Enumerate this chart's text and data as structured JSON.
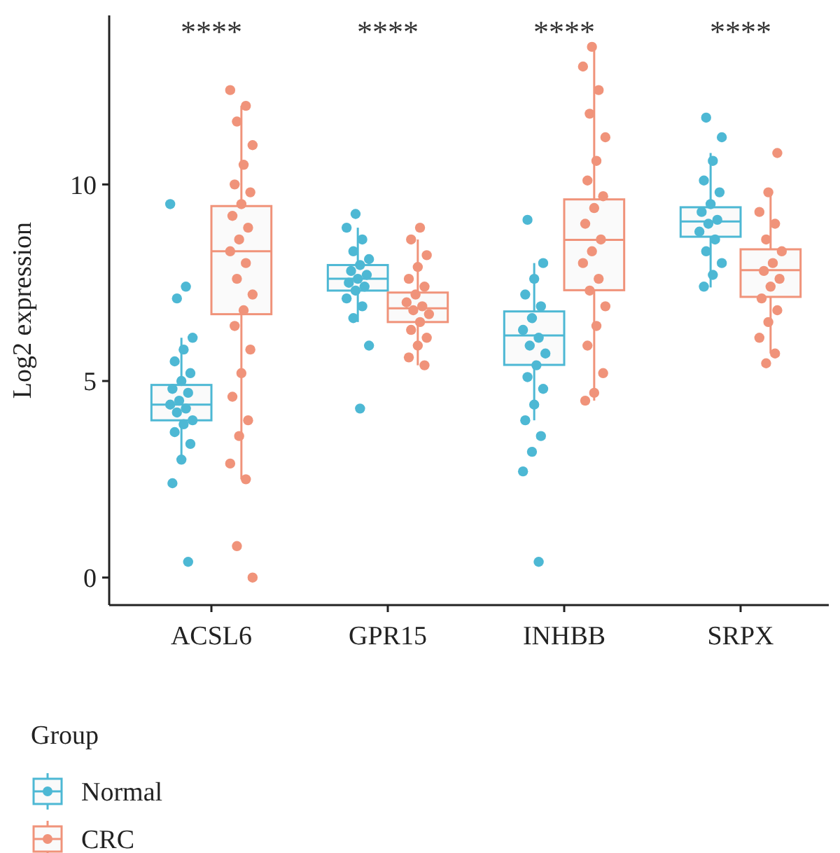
{
  "chart_data": {
    "type": "box",
    "categories": [
      "ACSL6",
      "GPR15",
      "INHBB",
      "SRPX"
    ],
    "ylabel": "Log2 expression",
    "legend_title": "Group",
    "legend": "bottom",
    "grid": false,
    "marker": "circle",
    "ylim": [
      -0.7,
      14.3
    ],
    "yticks": [
      0,
      5,
      10
    ],
    "annotations": [
      "****",
      "****",
      "****",
      "****"
    ],
    "series": [
      {
        "name": "Normal",
        "color": "#4db8d4",
        "boxes": [
          {
            "low": 3.0,
            "q1": 4.0,
            "median": 4.4,
            "q3": 4.9,
            "high": 6.1
          },
          {
            "low": 6.5,
            "q1": 7.3,
            "median": 7.6,
            "q3": 7.95,
            "high": 8.9
          },
          {
            "low": 4.0,
            "q1": 5.41,
            "median": 6.16,
            "q3": 6.77,
            "high": 8.0
          },
          {
            "low": 7.38,
            "q1": 8.67,
            "median": 9.06,
            "q3": 9.42,
            "high": 10.8
          }
        ]
      },
      {
        "name": "CRC",
        "color": "#f0937a",
        "boxes": [
          {
            "low": 2.5,
            "q1": 6.7,
            "median": 8.3,
            "q3": 9.45,
            "high": 12.0
          },
          {
            "low": 5.4,
            "q1": 6.5,
            "median": 6.85,
            "q3": 7.25,
            "high": 8.6
          },
          {
            "low": 4.5,
            "q1": 7.31,
            "median": 8.59,
            "q3": 9.62,
            "high": 13.5
          },
          {
            "low": 5.7,
            "q1": 7.14,
            "median": 7.82,
            "q3": 8.35,
            "high": 9.83
          }
        ]
      },
      {
        "type": "scatter",
        "color": "#4db8d4",
        "x": [
          "ACSL6",
          "ACSL6",
          "ACSL6",
          "ACSL6",
          "ACSL6",
          "ACSL6",
          "ACSL6",
          "ACSL6",
          "ACSL6",
          "ACSL6",
          "ACSL6",
          "ACSL6",
          "ACSL6",
          "ACSL6",
          "ACSL6",
          "ACSL6",
          "ACSL6",
          "ACSL6",
          "ACSL6",
          "ACSL6",
          "ACSL6",
          "GPR15",
          "GPR15",
          "GPR15",
          "GPR15",
          "GPR15",
          "GPR15",
          "GPR15",
          "GPR15",
          "GPR15",
          "GPR15",
          "GPR15",
          "GPR15",
          "GPR15",
          "GPR15",
          "GPR15",
          "GPR15",
          "GPR15",
          "INHBB",
          "INHBB",
          "INHBB",
          "INHBB",
          "INHBB",
          "INHBB",
          "INHBB",
          "INHBB",
          "INHBB",
          "INHBB",
          "INHBB",
          "INHBB",
          "INHBB",
          "INHBB",
          "INHBB",
          "INHBB",
          "INHBB",
          "INHBB",
          "INHBB",
          "SRPX",
          "SRPX",
          "SRPX",
          "SRPX",
          "SRPX",
          "SRPX",
          "SRPX",
          "SRPX",
          "SRPX",
          "SRPX",
          "SRPX",
          "SRPX",
          "SRPX",
          "SRPX",
          "SRPX"
        ],
        "values": [
          9.5,
          7.4,
          7.1,
          6.1,
          5.8,
          5.5,
          5.2,
          5.0,
          4.8,
          4.7,
          4.5,
          4.4,
          4.3,
          4.2,
          4.0,
          3.9,
          3.7,
          3.4,
          3.0,
          2.4,
          0.4,
          9.25,
          8.9,
          8.6,
          8.3,
          8.1,
          7.95,
          7.8,
          7.7,
          7.6,
          7.5,
          7.4,
          7.3,
          7.1,
          6.9,
          6.6,
          5.9,
          4.3,
          9.1,
          8.0,
          7.6,
          7.2,
          6.9,
          6.6,
          6.3,
          6.1,
          5.9,
          5.7,
          5.4,
          5.1,
          4.8,
          4.4,
          4.0,
          3.6,
          3.2,
          2.7,
          0.4,
          11.7,
          11.2,
          10.6,
          10.1,
          9.8,
          9.5,
          9.3,
          9.1,
          9.0,
          8.8,
          8.6,
          8.3,
          8.0,
          7.7,
          7.4
        ]
      },
      {
        "type": "scatter",
        "color": "#f0937a",
        "x": [
          "ACSL6",
          "ACSL6",
          "ACSL6",
          "ACSL6",
          "ACSL6",
          "ACSL6",
          "ACSL6",
          "ACSL6",
          "ACSL6",
          "ACSL6",
          "ACSL6",
          "ACSL6",
          "ACSL6",
          "ACSL6",
          "ACSL6",
          "ACSL6",
          "ACSL6",
          "ACSL6",
          "ACSL6",
          "ACSL6",
          "ACSL6",
          "ACSL6",
          "ACSL6",
          "ACSL6",
          "ACSL6",
          "ACSL6",
          "GPR15",
          "GPR15",
          "GPR15",
          "GPR15",
          "GPR15",
          "GPR15",
          "GPR15",
          "GPR15",
          "GPR15",
          "GPR15",
          "GPR15",
          "GPR15",
          "GPR15",
          "GPR15",
          "GPR15",
          "GPR15",
          "GPR15",
          "INHBB",
          "INHBB",
          "INHBB",
          "INHBB",
          "INHBB",
          "INHBB",
          "INHBB",
          "INHBB",
          "INHBB",
          "INHBB",
          "INHBB",
          "INHBB",
          "INHBB",
          "INHBB",
          "INHBB",
          "INHBB",
          "INHBB",
          "INHBB",
          "INHBB",
          "INHBB",
          "INHBB",
          "SRPX",
          "SRPX",
          "SRPX",
          "SRPX",
          "SRPX",
          "SRPX",
          "SRPX",
          "SRPX",
          "SRPX",
          "SRPX",
          "SRPX",
          "SRPX",
          "SRPX",
          "SRPX",
          "SRPX",
          "SRPX"
        ],
        "values": [
          12.4,
          12.0,
          11.6,
          11.0,
          10.5,
          10.0,
          9.8,
          9.5,
          9.2,
          8.9,
          8.6,
          8.3,
          8.0,
          7.6,
          7.2,
          6.8,
          6.4,
          5.8,
          5.2,
          4.6,
          4.0,
          3.6,
          2.9,
          2.5,
          0.8,
          0.0,
          8.9,
          8.6,
          8.2,
          7.9,
          7.6,
          7.4,
          7.2,
          7.0,
          6.9,
          6.8,
          6.7,
          6.5,
          6.3,
          6.1,
          5.9,
          5.6,
          5.4,
          13.5,
          13.0,
          12.4,
          11.8,
          11.2,
          10.6,
          10.1,
          9.7,
          9.4,
          9.0,
          8.6,
          8.3,
          8.0,
          7.6,
          7.3,
          6.9,
          6.4,
          5.9,
          5.2,
          4.7,
          4.5,
          10.8,
          9.8,
          9.3,
          9.0,
          8.6,
          8.3,
          8.0,
          7.8,
          7.6,
          7.4,
          7.1,
          6.8,
          6.5,
          6.1,
          5.7,
          5.45
        ]
      }
    ]
  }
}
